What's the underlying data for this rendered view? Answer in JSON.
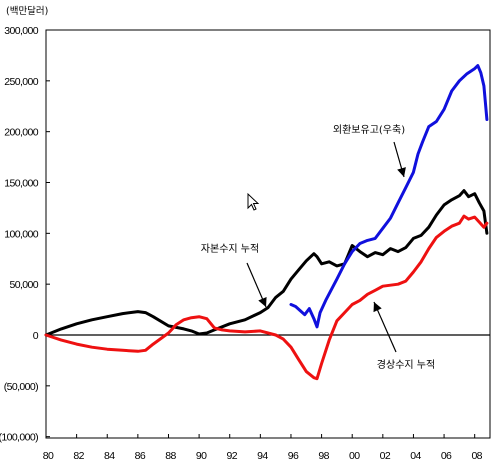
{
  "chart_data": {
    "type": "line",
    "unit_label": "(백만달러)",
    "xlim": [
      1980,
      2009
    ],
    "ylim": [
      -100000,
      300000
    ],
    "x_ticks": [
      1980,
      1982,
      1984,
      1986,
      1988,
      1990,
      1992,
      1994,
      1996,
      1998,
      2000,
      2002,
      2004,
      2006,
      2008
    ],
    "x_tick_labels": [
      "80",
      "82",
      "84",
      "86",
      "88",
      "90",
      "92",
      "94",
      "96",
      "98",
      "00",
      "02",
      "04",
      "06",
      "08"
    ],
    "y_ticks": [
      300000,
      250000,
      200000,
      150000,
      100000,
      50000,
      0,
      -50000,
      -100000
    ],
    "y_tick_labels": [
      "300,000",
      "250,000",
      "200,000",
      "150,000",
      "100,000",
      "50,000",
      "0",
      "(50,000)",
      "(100,000)"
    ],
    "grid": false,
    "series": [
      {
        "name": "자본수지 누적",
        "color": "#000000",
        "points": [
          [
            1980,
            0
          ],
          [
            1981,
            6000
          ],
          [
            1982,
            11000
          ],
          [
            1983,
            15000
          ],
          [
            1984,
            18000
          ],
          [
            1985,
            21000
          ],
          [
            1986,
            23000
          ],
          [
            1986.5,
            22000
          ],
          [
            1987,
            18000
          ],
          [
            1988,
            9000
          ],
          [
            1989,
            6000
          ],
          [
            1989.5,
            4000
          ],
          [
            1990,
            1000
          ],
          [
            1990.5,
            2000
          ],
          [
            1991,
            5000
          ],
          [
            1992,
            11000
          ],
          [
            1993,
            15000
          ],
          [
            1994,
            22000
          ],
          [
            1994.5,
            27000
          ],
          [
            1995,
            37000
          ],
          [
            1995.5,
            43000
          ],
          [
            1996,
            55000
          ],
          [
            1996.5,
            64000
          ],
          [
            1997,
            73000
          ],
          [
            1997.5,
            80000
          ],
          [
            1997.7,
            77000
          ],
          [
            1998,
            70000
          ],
          [
            1998.5,
            72000
          ],
          [
            1999,
            68000
          ],
          [
            1999.5,
            70000
          ],
          [
            2000,
            88000
          ],
          [
            2000.5,
            82000
          ],
          [
            2001,
            77000
          ],
          [
            2001.5,
            81000
          ],
          [
            2002,
            79000
          ],
          [
            2002.5,
            85000
          ],
          [
            2003,
            82000
          ],
          [
            2003.5,
            86000
          ],
          [
            2004,
            95000
          ],
          [
            2004.5,
            98000
          ],
          [
            2005,
            106000
          ],
          [
            2005.5,
            118000
          ],
          [
            2006,
            128000
          ],
          [
            2006.5,
            133000
          ],
          [
            2007,
            137000
          ],
          [
            2007.3,
            142000
          ],
          [
            2007.6,
            136000
          ],
          [
            2008,
            139000
          ],
          [
            2008.3,
            130000
          ],
          [
            2008.6,
            122000
          ],
          [
            2008.8,
            100000
          ]
        ]
      },
      {
        "name": "경상수지 누적",
        "color": "#ee1111",
        "points": [
          [
            1980,
            0
          ],
          [
            1981,
            -5000
          ],
          [
            1982,
            -9000
          ],
          [
            1983,
            -12000
          ],
          [
            1984,
            -14000
          ],
          [
            1985,
            -15000
          ],
          [
            1986,
            -16000
          ],
          [
            1986.5,
            -15000
          ],
          [
            1987,
            -9000
          ],
          [
            1988,
            2000
          ],
          [
            1988.5,
            10000
          ],
          [
            1989,
            15000
          ],
          [
            1989.5,
            17000
          ],
          [
            1990,
            18000
          ],
          [
            1990.5,
            16000
          ],
          [
            1991,
            7000
          ],
          [
            1991.5,
            5000
          ],
          [
            1992,
            4000
          ],
          [
            1993,
            3000
          ],
          [
            1994,
            4000
          ],
          [
            1995,
            0
          ],
          [
            1995.5,
            -4000
          ],
          [
            1996,
            -12000
          ],
          [
            1996.5,
            -24000
          ],
          [
            1997,
            -36000
          ],
          [
            1997.5,
            -42000
          ],
          [
            1997.7,
            -43000
          ],
          [
            1998,
            -28000
          ],
          [
            1998.5,
            -5000
          ],
          [
            1999,
            14000
          ],
          [
            1999.5,
            22000
          ],
          [
            2000,
            30000
          ],
          [
            2000.5,
            34000
          ],
          [
            2001,
            40000
          ],
          [
            2001.5,
            44000
          ],
          [
            2002,
            48000
          ],
          [
            2003,
            50000
          ],
          [
            2003.5,
            53000
          ],
          [
            2004,
            62000
          ],
          [
            2004.5,
            72000
          ],
          [
            2005,
            85000
          ],
          [
            2005.5,
            96000
          ],
          [
            2006,
            102000
          ],
          [
            2006.5,
            107000
          ],
          [
            2007,
            110000
          ],
          [
            2007.3,
            117000
          ],
          [
            2007.6,
            114000
          ],
          [
            2008,
            116000
          ],
          [
            2008.3,
            111000
          ],
          [
            2008.6,
            106000
          ],
          [
            2008.8,
            110000
          ]
        ]
      },
      {
        "name": "외환보유고(우축)",
        "color": "#1010dd",
        "points": [
          [
            1996,
            30000
          ],
          [
            1996.3,
            28000
          ],
          [
            1996.6,
            24000
          ],
          [
            1996.9,
            20000
          ],
          [
            1997.2,
            26000
          ],
          [
            1997.5,
            16000
          ],
          [
            1997.7,
            8000
          ],
          [
            1997.9,
            22000
          ],
          [
            1998.3,
            35000
          ],
          [
            1999,
            55000
          ],
          [
            1999.5,
            70000
          ],
          [
            2000,
            82000
          ],
          [
            2000.5,
            90000
          ],
          [
            2001,
            93000
          ],
          [
            2001.5,
            95000
          ],
          [
            2002,
            105000
          ],
          [
            2002.5,
            115000
          ],
          [
            2003,
            130000
          ],
          [
            2003.5,
            145000
          ],
          [
            2004,
            160000
          ],
          [
            2004.3,
            178000
          ],
          [
            2004.6,
            190000
          ],
          [
            2005,
            205000
          ],
          [
            2005.5,
            210000
          ],
          [
            2006,
            222000
          ],
          [
            2006.5,
            240000
          ],
          [
            2007,
            250000
          ],
          [
            2007.5,
            257000
          ],
          [
            2008,
            262000
          ],
          [
            2008.2,
            265000
          ],
          [
            2008.4,
            258000
          ],
          [
            2008.6,
            245000
          ],
          [
            2008.8,
            212000
          ]
        ]
      }
    ],
    "annotations": [
      {
        "text": "외환보유고(우축)",
        "series": "외환보유고(우축)"
      },
      {
        "text": "자본수지 누적",
        "series": "자본수지 누적"
      },
      {
        "text": "경상수지 누적",
        "series": "경상수지 누적"
      }
    ]
  }
}
